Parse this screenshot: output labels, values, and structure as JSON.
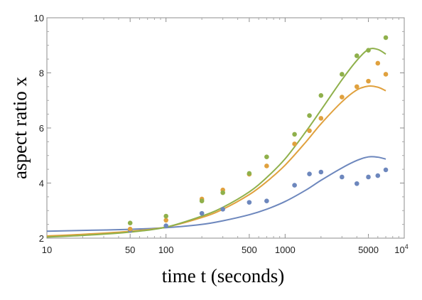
{
  "chart_data": {
    "type": "scatter",
    "xlabel": "time t (seconds)",
    "ylabel": "aspect ratio x",
    "xscale": "log",
    "xlim": [
      10,
      10000
    ],
    "ylim": [
      2,
      10
    ],
    "x_ticks": [
      {
        "value": 10,
        "label": "10"
      },
      {
        "value": 50,
        "label": "50"
      },
      {
        "value": 100,
        "label": "100"
      },
      {
        "value": 500,
        "label": "500"
      },
      {
        "value": 1000,
        "label": "1000"
      },
      {
        "value": 5000,
        "label": "5000"
      },
      {
        "value": 10000,
        "label": "10",
        "exponent": "4"
      }
    ],
    "y_ticks": [
      2,
      4,
      6,
      8,
      10
    ],
    "grid": false,
    "series": [
      {
        "color": "#6d87bd",
        "points": [
          [
            50,
            2.28
          ],
          [
            100,
            2.45
          ],
          [
            200,
            2.9
          ],
          [
            300,
            3.05
          ],
          [
            500,
            3.3
          ],
          [
            700,
            3.35
          ],
          [
            1200,
            3.92
          ],
          [
            1600,
            4.33
          ],
          [
            2000,
            4.4
          ],
          [
            3000,
            4.22
          ],
          [
            4000,
            3.98
          ],
          [
            5000,
            4.22
          ],
          [
            6000,
            4.27
          ],
          [
            7000,
            4.48
          ]
        ],
        "curve": [
          [
            10,
            2.25
          ],
          [
            20,
            2.28
          ],
          [
            50,
            2.32
          ],
          [
            100,
            2.38
          ],
          [
            200,
            2.5
          ],
          [
            300,
            2.63
          ],
          [
            500,
            2.85
          ],
          [
            700,
            3.05
          ],
          [
            1000,
            3.33
          ],
          [
            1500,
            3.75
          ],
          [
            2000,
            4.1
          ],
          [
            3000,
            4.55
          ],
          [
            4000,
            4.82
          ],
          [
            5000,
            4.95
          ],
          [
            6000,
            4.94
          ],
          [
            7000,
            4.87
          ]
        ]
      },
      {
        "color": "#e0a13e",
        "points": [
          [
            50,
            2.33
          ],
          [
            100,
            2.65
          ],
          [
            200,
            3.42
          ],
          [
            300,
            3.75
          ],
          [
            500,
            4.32
          ],
          [
            700,
            4.62
          ],
          [
            1200,
            5.42
          ],
          [
            1600,
            5.9
          ],
          [
            2000,
            6.35
          ],
          [
            3000,
            7.12
          ],
          [
            4000,
            7.5
          ],
          [
            5000,
            7.7
          ],
          [
            6000,
            8.35
          ],
          [
            7000,
            7.95
          ]
        ],
        "curve": [
          [
            10,
            2.08
          ],
          [
            20,
            2.14
          ],
          [
            50,
            2.25
          ],
          [
            100,
            2.4
          ],
          [
            200,
            2.75
          ],
          [
            300,
            3.05
          ],
          [
            500,
            3.58
          ],
          [
            700,
            4.05
          ],
          [
            1000,
            4.65
          ],
          [
            1500,
            5.5
          ],
          [
            2000,
            6.15
          ],
          [
            3000,
            6.95
          ],
          [
            4000,
            7.38
          ],
          [
            5000,
            7.52
          ],
          [
            6000,
            7.48
          ],
          [
            7000,
            7.35
          ]
        ]
      },
      {
        "color": "#8fb04b",
        "points": [
          [
            50,
            2.55
          ],
          [
            100,
            2.8
          ],
          [
            200,
            3.35
          ],
          [
            300,
            3.65
          ],
          [
            500,
            4.35
          ],
          [
            700,
            4.95
          ],
          [
            1200,
            5.77
          ],
          [
            1600,
            6.45
          ],
          [
            2000,
            7.18
          ],
          [
            3000,
            7.95
          ],
          [
            4000,
            8.62
          ],
          [
            5000,
            8.82
          ],
          [
            7000,
            9.28
          ]
        ],
        "curve": [
          [
            10,
            2.04
          ],
          [
            20,
            2.1
          ],
          [
            50,
            2.22
          ],
          [
            100,
            2.4
          ],
          [
            200,
            2.8
          ],
          [
            300,
            3.12
          ],
          [
            500,
            3.68
          ],
          [
            700,
            4.2
          ],
          [
            1000,
            4.88
          ],
          [
            1500,
            5.88
          ],
          [
            2000,
            6.65
          ],
          [
            3000,
            7.75
          ],
          [
            4000,
            8.45
          ],
          [
            5000,
            8.85
          ],
          [
            6000,
            8.85
          ],
          [
            7000,
            8.68
          ]
        ]
      }
    ]
  }
}
